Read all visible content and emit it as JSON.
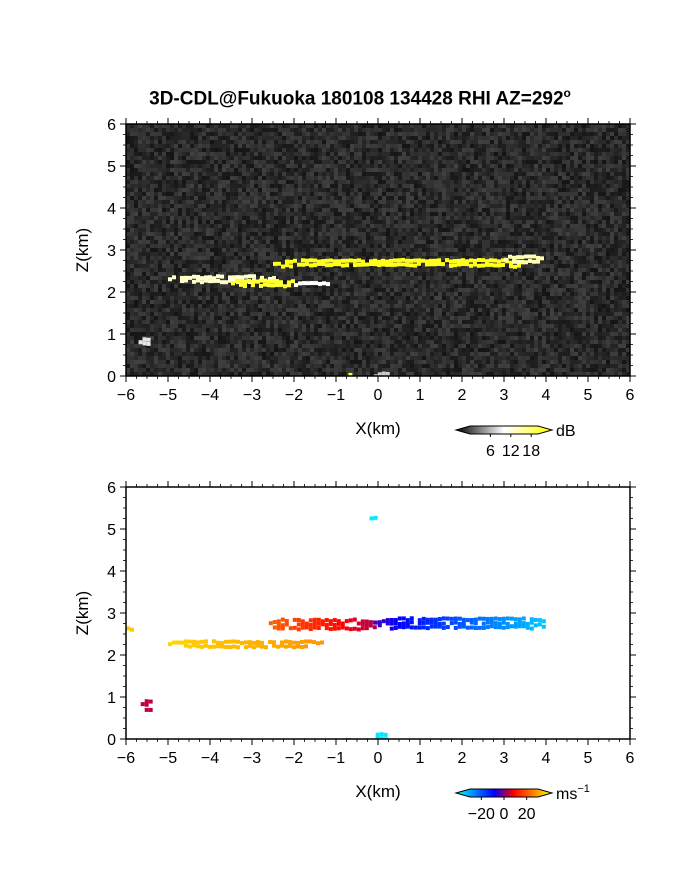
{
  "title": "3D-CDL@Fukuoka 180108 134428 RHI AZ=292",
  "title_suffix": "o",
  "chart_data": [
    {
      "type": "heatmap",
      "panel": "intensity",
      "xlabel": "X(km)",
      "ylabel": "Z(km)",
      "xlim": [
        -6,
        6
      ],
      "ylim": [
        0,
        6
      ],
      "xticks": [
        -6,
        -5,
        -4,
        -3,
        -2,
        -1,
        0,
        1,
        2,
        3,
        4,
        5,
        6
      ],
      "yticks": [
        0,
        1,
        2,
        3,
        4,
        5,
        6
      ],
      "background": "noise",
      "colorbar": {
        "unit": "dB",
        "ticks": [
          6,
          12,
          18
        ],
        "range": [
          0,
          20
        ],
        "colors": [
          "#000000",
          "#ffffff",
          "#ffff00"
        ]
      },
      "features": [
        {
          "x_start": -2.5,
          "x_end": 3.5,
          "z_center": 2.7,
          "thickness": 0.18,
          "value": 19
        },
        {
          "x_start": 3.0,
          "x_end": 4.0,
          "z_center": 2.82,
          "thickness": 0.1,
          "value": 13
        },
        {
          "x_start": -5.0,
          "x_end": -2.5,
          "z_center": 2.35,
          "thickness": 0.1,
          "value": 12
        },
        {
          "x_start": -3.5,
          "x_end": -2.0,
          "z_center": 2.25,
          "thickness": 0.1,
          "value": 18
        },
        {
          "x_start": -2.0,
          "x_end": -1.2,
          "z_center": 2.22,
          "thickness": 0.06,
          "value": 10
        },
        {
          "x_start": -5.7,
          "x_end": -5.4,
          "z_center": 0.85,
          "thickness": 0.1,
          "value": 9
        },
        {
          "x_start": -0.1,
          "x_end": 0.2,
          "z_center": 0.05,
          "thickness": 0.06,
          "value": 8
        },
        {
          "x_start": -0.8,
          "x_end": -0.6,
          "z_center": 0.02,
          "thickness": 0.03,
          "value": 18
        }
      ]
    },
    {
      "type": "heatmap",
      "panel": "velocity",
      "xlabel": "X(km)",
      "ylabel": "Z(km)",
      "xlim": [
        -6,
        6
      ],
      "ylim": [
        0,
        6
      ],
      "xticks": [
        -6,
        -5,
        -4,
        -3,
        -2,
        -1,
        0,
        1,
        2,
        3,
        4,
        5,
        6
      ],
      "yticks": [
        0,
        1,
        2,
        3,
        4,
        5,
        6
      ],
      "background": "#ffffff",
      "colorbar": {
        "unit": "ms",
        "unit_exponent": "−1",
        "ticks": [
          "−20",
          "0",
          "20"
        ],
        "range": [
          -30,
          30
        ],
        "colors": [
          "#00ffff",
          "#0080ff",
          "#0000ff",
          "#ff0000",
          "#ff8000",
          "#ffff00"
        ]
      },
      "features": [
        {
          "x_start": -2.6,
          "x_end": -0.1,
          "z_center": 2.75,
          "thickness": 0.24,
          "value_start": 15,
          "value_end": 2
        },
        {
          "x_start": -0.1,
          "x_end": 4.0,
          "z_center": 2.78,
          "thickness": 0.24,
          "value_start": -3,
          "value_end": -25
        },
        {
          "x_start": -5.0,
          "x_end": -1.3,
          "z_center": 2.3,
          "thickness": 0.1,
          "value_start": 26,
          "value_end": 20
        },
        {
          "x_start": -5.65,
          "x_end": -5.4,
          "z_center": 0.85,
          "thickness": 0.2,
          "value_start": 3,
          "value_end": 3
        },
        {
          "x_start": -0.15,
          "x_end": 0.2,
          "z_center": 0.1,
          "thickness": 0.12,
          "value_start": -28,
          "value_end": -28
        },
        {
          "x_start": -0.2,
          "x_end": -0.1,
          "z_center": 5.3,
          "thickness": 0.05,
          "value_start": -28,
          "value_end": -28
        },
        {
          "x_start": -6.0,
          "x_end": -5.9,
          "z_center": 2.65,
          "thickness": 0.05,
          "value_start": 25,
          "value_end": 25
        },
        {
          "x_start": -0.85,
          "x_end": -0.6,
          "z_center": 0.0,
          "thickness": 0.03,
          "value_start": 3,
          "value_end": 3
        }
      ]
    }
  ]
}
